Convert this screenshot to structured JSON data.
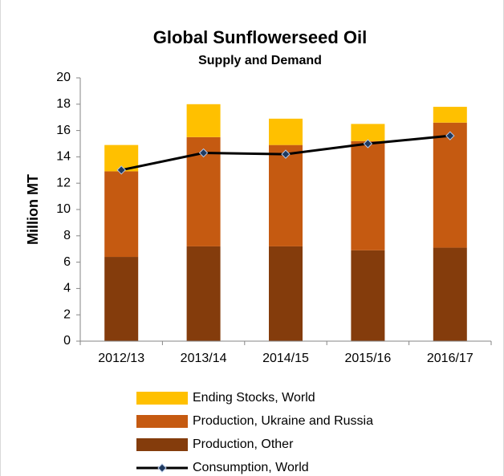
{
  "chart_data": {
    "type": "stacked_bar_line",
    "title": "Global Sunflowerseed Oil",
    "subtitle": "Supply and Demand",
    "ylabel": "Million MT",
    "categories": [
      "2012/13",
      "2013/14",
      "2014/15",
      "2015/16",
      "2016/17"
    ],
    "series": [
      {
        "name": "Production, Other",
        "color": "#843c0c",
        "kind": "bar",
        "values": [
          6.4,
          7.2,
          7.2,
          6.9,
          7.1
        ]
      },
      {
        "name": "Production, Ukraine and Russia",
        "color": "#c55a11",
        "kind": "bar",
        "values": [
          6.5,
          8.3,
          7.7,
          8.3,
          9.5
        ]
      },
      {
        "name": "Ending Stocks, World",
        "color": "#ffc000",
        "kind": "bar",
        "values": [
          2.0,
          2.5,
          2.0,
          1.3,
          1.2
        ]
      },
      {
        "name": "Consumption, World",
        "color": "#000000",
        "kind": "line",
        "values": [
          13.0,
          14.3,
          14.2,
          15.0,
          15.6
        ]
      }
    ],
    "ylim": [
      0,
      20
    ],
    "yticks": [
      0,
      2,
      4,
      6,
      8,
      10,
      12,
      14,
      16,
      18,
      20
    ],
    "grid": false
  }
}
